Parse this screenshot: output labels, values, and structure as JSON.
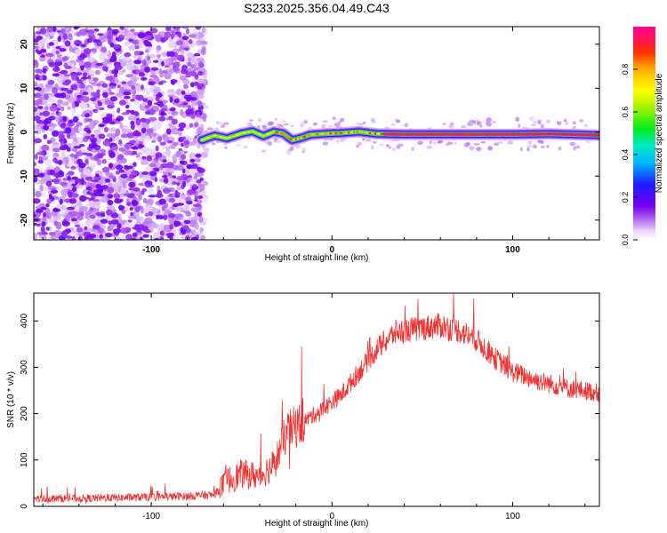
{
  "title": "S233.2025.356.04.49.C43",
  "chart_data": [
    {
      "type": "heatmap",
      "name": "spectrogram",
      "xlabel": "Height of straight line (km)",
      "ylabel": "Frequency (Hz)",
      "xlim": [
        -165,
        148
      ],
      "ylim": [
        -24.5,
        24
      ],
      "xticks": [
        -100,
        0,
        100
      ],
      "yticks": [
        -20,
        -10,
        0,
        10,
        20
      ],
      "noise_region_x": [
        -165,
        -72
      ],
      "signal_ridge": {
        "x": [
          -72,
          -65,
          -58,
          -50,
          -44,
          -38,
          -32,
          -27,
          -22,
          -17,
          -12,
          -5,
          5,
          15,
          25,
          40,
          60,
          80,
          100,
          120,
          140,
          148
        ],
        "freq_hz": [
          -1.8,
          -0.8,
          -1.4,
          -0.3,
          0.2,
          -0.9,
          0.1,
          -0.3,
          -1.8,
          -1.3,
          -0.6,
          -0.4,
          -0.2,
          0.1,
          -0.4,
          -0.5,
          -0.5,
          -0.5,
          -0.5,
          -0.4,
          -0.6,
          -0.7
        ]
      },
      "colorbar": {
        "label": "Normalized spectral amplitude",
        "range": [
          0,
          1
        ],
        "ticks": [
          "0.0",
          "0.2",
          "0.4",
          "0.6",
          "0.8"
        ],
        "tick_values": [
          0,
          0.2,
          0.4,
          0.6,
          0.8
        ]
      }
    },
    {
      "type": "line",
      "name": "snr",
      "xlabel": "Height of straight line (km)",
      "ylabel": "SNR (10 * v/v)",
      "xlim": [
        -165,
        148
      ],
      "ylim": [
        0,
        460
      ],
      "xticks": [
        -100,
        0,
        100
      ],
      "yticks": [
        0,
        100,
        200,
        300,
        400
      ],
      "color": "#ee3333",
      "trend": {
        "x": [
          -165,
          -140,
          -100,
          -80,
          -65,
          -58,
          -50,
          -40,
          -32,
          -25,
          -15,
          -5,
          5,
          15,
          25,
          35,
          50,
          60,
          70,
          80,
          90,
          100,
          115,
          130,
          148
        ],
        "snr": [
          17,
          17,
          20,
          22,
          25,
          55,
          70,
          65,
          90,
          160,
          185,
          210,
          240,
          290,
          340,
          375,
          385,
          390,
          380,
          360,
          320,
          290,
          270,
          255,
          245
        ]
      },
      "noise_amplitude": 22
    }
  ]
}
